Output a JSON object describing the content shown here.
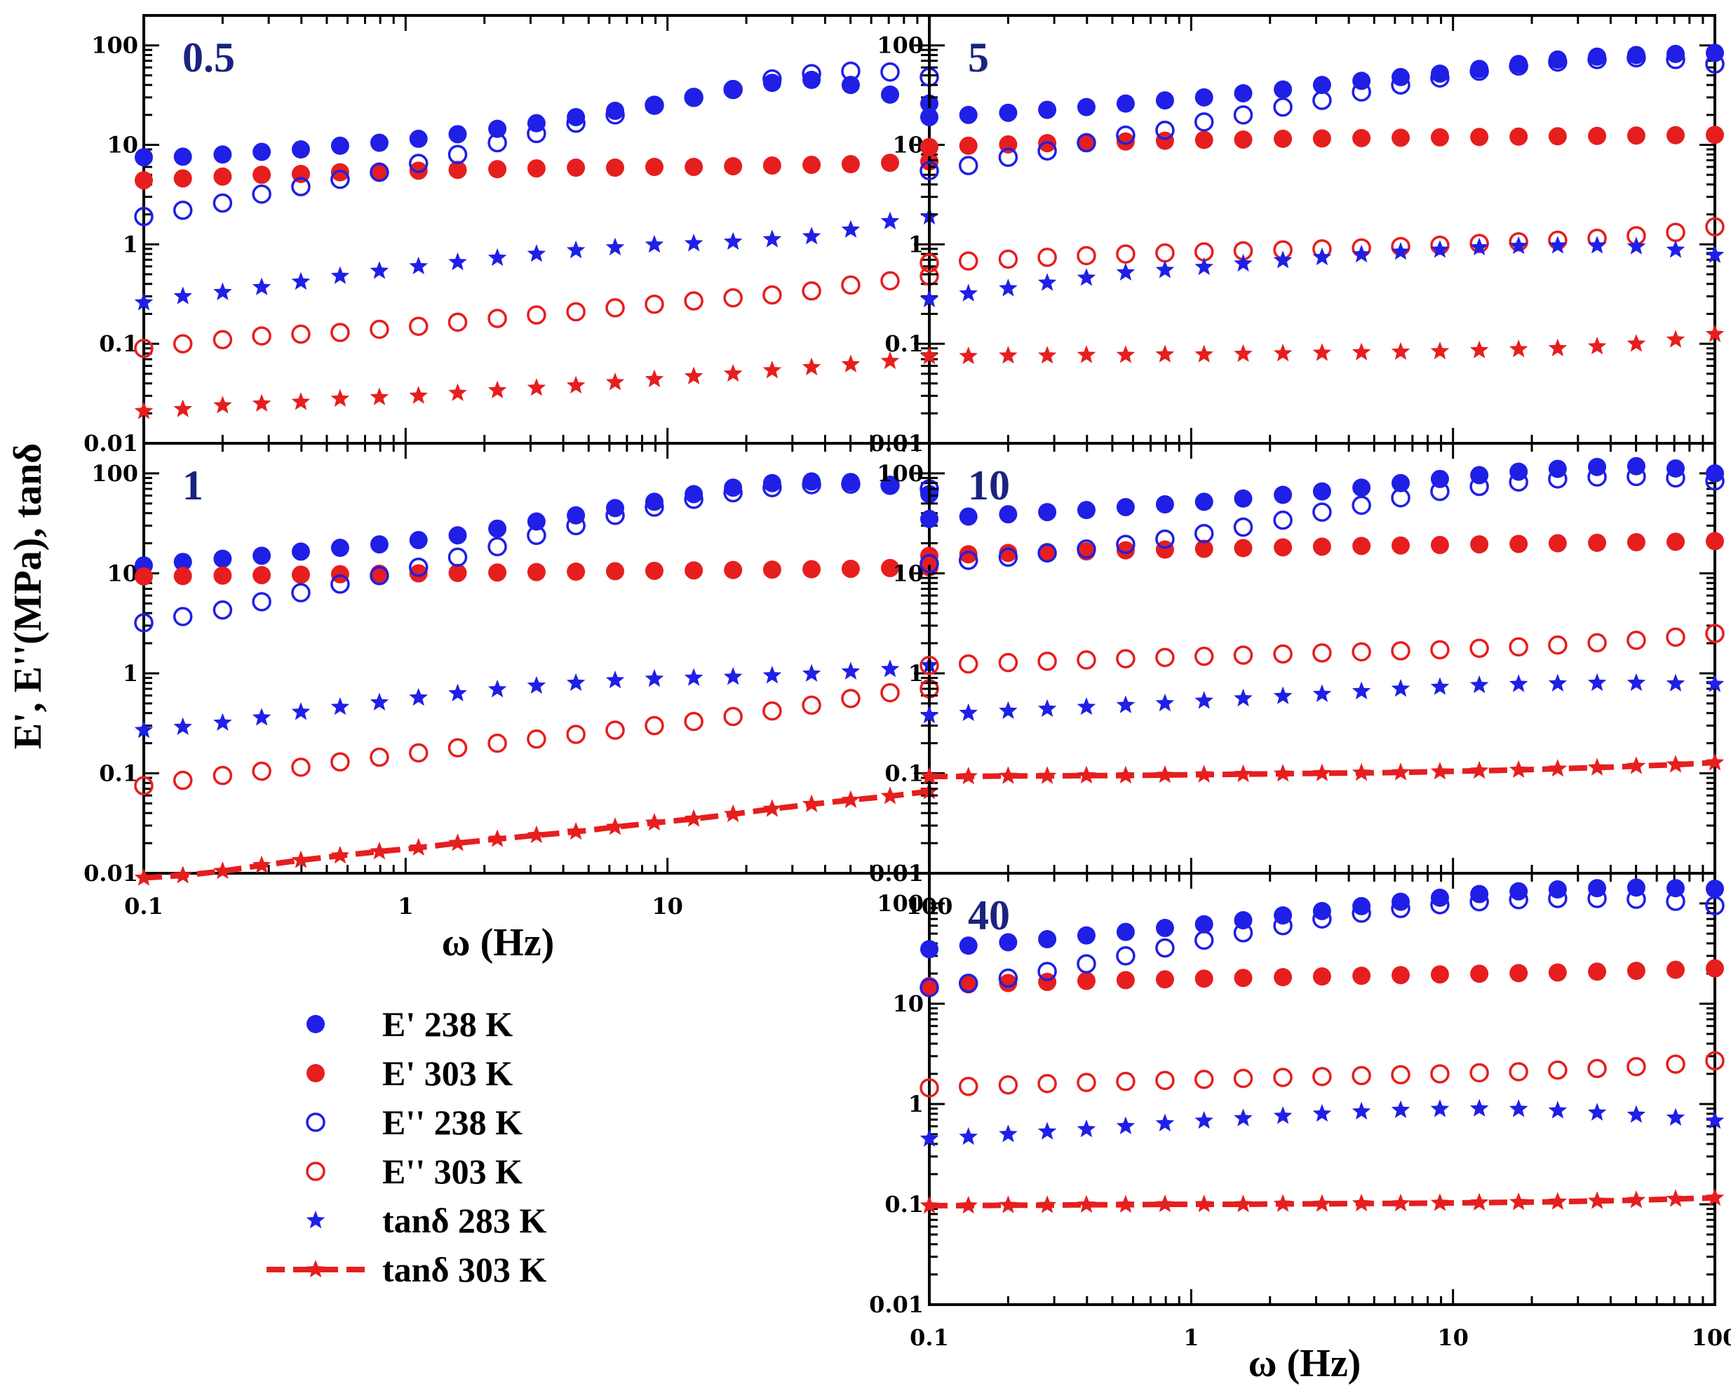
{
  "colors": {
    "blue": "#1f1fe6",
    "red": "#e61e1e",
    "panel_label": "#1a237e",
    "axis": "#000000"
  },
  "ylabel": "E', E''(MPa), tanδ",
  "xlabel": "ω (Hz)",
  "x_ticks": [
    "0.1",
    "1",
    "10",
    "100"
  ],
  "y_ticks": [
    "0.01",
    "0.1",
    "1",
    "10",
    "100"
  ],
  "legend": [
    {
      "label": "E'  238 K",
      "marker": "filled-circle",
      "color": "blue"
    },
    {
      "label": "E'  303 K",
      "marker": "filled-circle",
      "color": "red"
    },
    {
      "label": "E''  238 K",
      "marker": "open-circle",
      "color": "blue"
    },
    {
      "label": "E'' 303 K",
      "marker": "open-circle",
      "color": "red"
    },
    {
      "label": "tanδ 283 K",
      "marker": "star",
      "color": "blue"
    },
    {
      "label": "tanδ 303 K",
      "marker": "star-dashed-line",
      "color": "red"
    }
  ],
  "chart_data": [
    {
      "type": "scatter",
      "title": "0.5",
      "xscale": "log",
      "yscale": "log",
      "xlim": [
        0.1,
        100
      ],
      "ylim": [
        0.01,
        200
      ],
      "x": [
        0.1,
        0.141,
        0.2,
        0.282,
        0.398,
        0.562,
        0.794,
        1.12,
        1.58,
        2.24,
        3.16,
        4.47,
        6.31,
        8.91,
        12.6,
        17.8,
        25.1,
        35.5,
        50.1,
        70.8,
        100
      ],
      "series": [
        {
          "name": "E' 238 K",
          "style": "filled-circle",
          "color": "blue",
          "values": [
            7.5,
            7.6,
            8,
            8.5,
            9,
            9.8,
            10.5,
            11.5,
            12.8,
            14.5,
            16.5,
            19,
            22,
            25,
            30,
            36,
            42,
            45,
            40,
            32,
            26
          ]
        },
        {
          "name": "E' 303 K",
          "style": "filled-circle",
          "color": "red",
          "values": [
            4.4,
            4.6,
            4.8,
            5,
            5.1,
            5.3,
            5.4,
            5.5,
            5.6,
            5.7,
            5.8,
            5.9,
            5.9,
            6,
            6,
            6.1,
            6.2,
            6.3,
            6.4,
            6.6,
            6.8
          ]
        },
        {
          "name": "E'' 238 K",
          "style": "open-circle",
          "color": "blue",
          "values": [
            1.9,
            2.2,
            2.6,
            3.2,
            3.8,
            4.5,
            5.3,
            6.5,
            8,
            10.5,
            13,
            16.5,
            20,
            25,
            30,
            36,
            46,
            52,
            55,
            54,
            48
          ]
        },
        {
          "name": "E'' 303 K",
          "style": "open-circle",
          "color": "red",
          "values": [
            0.09,
            0.1,
            0.11,
            0.12,
            0.125,
            0.13,
            0.14,
            0.15,
            0.165,
            0.18,
            0.195,
            0.21,
            0.23,
            0.25,
            0.27,
            0.29,
            0.31,
            0.34,
            0.39,
            0.43,
            0.48
          ]
        },
        {
          "name": "tanδ 283 K",
          "style": "star",
          "color": "blue",
          "values": [
            0.26,
            0.3,
            0.33,
            0.37,
            0.42,
            0.48,
            0.54,
            0.6,
            0.66,
            0.73,
            0.8,
            0.87,
            0.93,
            0.99,
            1.02,
            1.06,
            1.12,
            1.2,
            1.4,
            1.7,
            1.9
          ]
        },
        {
          "name": "tanδ 303 K",
          "style": "star",
          "color": "red",
          "values": [
            0.021,
            0.022,
            0.024,
            0.025,
            0.026,
            0.028,
            0.029,
            0.03,
            0.032,
            0.034,
            0.036,
            0.038,
            0.041,
            0.044,
            0.047,
            0.05,
            0.054,
            0.058,
            0.062,
            0.067,
            0.075
          ]
        }
      ]
    },
    {
      "type": "scatter",
      "title": "5",
      "xscale": "log",
      "yscale": "log",
      "xlim": [
        0.1,
        100
      ],
      "ylim": [
        0.01,
        200
      ],
      "x": [
        0.1,
        0.141,
        0.2,
        0.282,
        0.398,
        0.562,
        0.794,
        1.12,
        1.58,
        2.24,
        3.16,
        4.47,
        6.31,
        8.91,
        12.6,
        17.8,
        25.1,
        35.5,
        50.1,
        70.8,
        100
      ],
      "series": [
        {
          "name": "E' 238 K",
          "style": "filled-circle",
          "color": "blue",
          "values": [
            19,
            20,
            21,
            22.5,
            24,
            26,
            28,
            30,
            33,
            36,
            40,
            44,
            48,
            52,
            58,
            65,
            72,
            77,
            80,
            82,
            84
          ]
        },
        {
          "name": "E' 303 K",
          "style": "filled-circle",
          "color": "red",
          "values": [
            9.5,
            9.8,
            10.1,
            10.4,
            10.6,
            10.8,
            11,
            11.2,
            11.3,
            11.5,
            11.6,
            11.7,
            11.8,
            11.9,
            12,
            12.1,
            12.2,
            12.3,
            12.4,
            12.5,
            12.6
          ]
        },
        {
          "name": "E'' 238 K",
          "style": "open-circle",
          "color": "blue",
          "values": [
            5.5,
            6.2,
            7.5,
            8.7,
            10.5,
            12.5,
            14,
            17,
            20,
            24,
            28,
            34,
            40,
            47,
            55,
            62,
            68,
            72,
            75,
            72,
            65
          ]
        },
        {
          "name": "E'' 303 K",
          "style": "open-circle",
          "color": "red",
          "values": [
            0.65,
            0.68,
            0.71,
            0.74,
            0.77,
            0.8,
            0.82,
            0.84,
            0.86,
            0.88,
            0.9,
            0.92,
            0.95,
            0.98,
            1.02,
            1.06,
            1.1,
            1.15,
            1.22,
            1.32,
            1.5
          ]
        },
        {
          "name": "tanδ 283 K",
          "style": "star",
          "color": "blue",
          "values": [
            0.28,
            0.32,
            0.36,
            0.41,
            0.46,
            0.52,
            0.55,
            0.59,
            0.64,
            0.69,
            0.74,
            0.79,
            0.84,
            0.88,
            0.93,
            0.96,
            0.97,
            0.97,
            0.95,
            0.88,
            0.78
          ]
        },
        {
          "name": "tanδ 303 K",
          "style": "star",
          "color": "red",
          "values": [
            0.075,
            0.075,
            0.076,
            0.076,
            0.077,
            0.077,
            0.078,
            0.078,
            0.079,
            0.08,
            0.081,
            0.082,
            0.083,
            0.084,
            0.086,
            0.088,
            0.09,
            0.094,
            0.1,
            0.11,
            0.125
          ]
        }
      ]
    },
    {
      "type": "scatter",
      "title": "1",
      "xscale": "log",
      "yscale": "log",
      "xlim": [
        0.1,
        100
      ],
      "ylim": [
        0.01,
        200
      ],
      "x": [
        0.1,
        0.141,
        0.2,
        0.282,
        0.398,
        0.562,
        0.794,
        1.12,
        1.58,
        2.24,
        3.16,
        4.47,
        6.31,
        8.91,
        12.6,
        17.8,
        25.1,
        35.5,
        50.1,
        70.8,
        100
      ],
      "series": [
        {
          "name": "E' 238 K",
          "style": "filled-circle",
          "color": "blue",
          "values": [
            12,
            13,
            14,
            15,
            16.5,
            18,
            19.5,
            21.5,
            24,
            28,
            33,
            38,
            45,
            52,
            62,
            72,
            80,
            83,
            82,
            76,
            62
          ]
        },
        {
          "name": "E' 303 K",
          "style": "filled-circle",
          "color": "red",
          "values": [
            9.3,
            9.4,
            9.5,
            9.6,
            9.7,
            9.8,
            9.9,
            10,
            10.1,
            10.2,
            10.3,
            10.4,
            10.5,
            10.6,
            10.7,
            10.8,
            10.9,
            11,
            11.1,
            11.3,
            11.5
          ]
        },
        {
          "name": "E'' 238 K",
          "style": "open-circle",
          "color": "blue",
          "values": [
            3.2,
            3.7,
            4.3,
            5.2,
            6.4,
            7.8,
            9.5,
            11.5,
            14.5,
            18.5,
            24,
            30,
            38,
            46,
            55,
            64,
            72,
            77,
            78,
            76,
            70
          ]
        },
        {
          "name": "E'' 303 K",
          "style": "open-circle",
          "color": "red",
          "values": [
            0.075,
            0.085,
            0.095,
            0.105,
            0.115,
            0.13,
            0.145,
            0.16,
            0.18,
            0.2,
            0.22,
            0.245,
            0.27,
            0.3,
            0.33,
            0.37,
            0.42,
            0.48,
            0.56,
            0.64,
            0.7
          ]
        },
        {
          "name": "tanδ 283 K",
          "style": "star",
          "color": "blue",
          "values": [
            0.27,
            0.29,
            0.32,
            0.36,
            0.41,
            0.46,
            0.51,
            0.57,
            0.63,
            0.69,
            0.75,
            0.8,
            0.85,
            0.88,
            0.9,
            0.92,
            0.95,
            0.99,
            1.04,
            1.1,
            1.2
          ]
        },
        {
          "name": "tanδ 303 K",
          "style": "star-dashed-line",
          "color": "red",
          "values": [
            0.009,
            0.0095,
            0.0105,
            0.012,
            0.0135,
            0.015,
            0.0165,
            0.018,
            0.02,
            0.022,
            0.024,
            0.026,
            0.029,
            0.032,
            0.035,
            0.039,
            0.044,
            0.049,
            0.054,
            0.059,
            0.066
          ]
        }
      ]
    },
    {
      "type": "scatter",
      "title": "10",
      "xscale": "log",
      "yscale": "log",
      "xlim": [
        0.1,
        100
      ],
      "ylim": [
        0.01,
        200
      ],
      "x": [
        0.1,
        0.141,
        0.2,
        0.282,
        0.398,
        0.562,
        0.794,
        1.12,
        1.58,
        2.24,
        3.16,
        4.47,
        6.31,
        8.91,
        12.6,
        17.8,
        25.1,
        35.5,
        50.1,
        70.8,
        100
      ],
      "series": [
        {
          "name": "E' 238 K",
          "style": "filled-circle",
          "color": "blue",
          "values": [
            35,
            37,
            39,
            41,
            43,
            46,
            49,
            52,
            56,
            61,
            66,
            72,
            80,
            88,
            96,
            104,
            111,
            116,
            118,
            112,
            100
          ]
        },
        {
          "name": "E' 303 K",
          "style": "filled-circle",
          "color": "red",
          "values": [
            15,
            15.5,
            16,
            16.3,
            16.6,
            17,
            17.3,
            17.6,
            17.9,
            18.2,
            18.5,
            18.8,
            19,
            19.2,
            19.5,
            19.7,
            20,
            20.2,
            20.5,
            20.7,
            21
          ]
        },
        {
          "name": "E'' 238 K",
          "style": "open-circle",
          "color": "blue",
          "values": [
            12.5,
            13.5,
            14.5,
            16,
            17.5,
            19.5,
            22,
            25,
            29,
            34,
            41,
            48,
            57,
            66,
            74,
            82,
            88,
            92,
            93,
            90,
            84
          ]
        },
        {
          "name": "E'' 303 K",
          "style": "open-circle",
          "color": "red",
          "values": [
            1.2,
            1.24,
            1.28,
            1.32,
            1.36,
            1.4,
            1.44,
            1.48,
            1.52,
            1.56,
            1.6,
            1.64,
            1.68,
            1.72,
            1.78,
            1.84,
            1.92,
            2.02,
            2.14,
            2.3,
            2.5
          ]
        },
        {
          "name": "tanδ 283 K",
          "style": "star",
          "color": "blue",
          "values": [
            0.38,
            0.4,
            0.42,
            0.44,
            0.46,
            0.48,
            0.5,
            0.53,
            0.56,
            0.59,
            0.62,
            0.66,
            0.7,
            0.73,
            0.76,
            0.78,
            0.79,
            0.8,
            0.8,
            0.79,
            0.78
          ]
        },
        {
          "name": "tanδ 303 K",
          "style": "star-dashed-line",
          "color": "red",
          "values": [
            0.093,
            0.093,
            0.094,
            0.094,
            0.095,
            0.095,
            0.096,
            0.097,
            0.098,
            0.099,
            0.1,
            0.101,
            0.102,
            0.104,
            0.106,
            0.108,
            0.111,
            0.114,
            0.118,
            0.122,
            0.128
          ]
        }
      ]
    },
    {
      "type": "scatter",
      "title": "40",
      "xscale": "log",
      "yscale": "log",
      "xlim": [
        0.1,
        100
      ],
      "ylim": [
        0.01,
        200
      ],
      "x": [
        0.1,
        0.141,
        0.2,
        0.282,
        0.398,
        0.562,
        0.794,
        1.12,
        1.58,
        2.24,
        3.16,
        4.47,
        6.31,
        8.91,
        12.6,
        17.8,
        25.1,
        35.5,
        50.1,
        70.8,
        100
      ],
      "series": [
        {
          "name": "E' 238 K",
          "style": "filled-circle",
          "color": "blue",
          "values": [
            35,
            38,
            41,
            44,
            48,
            52,
            57,
            62,
            68,
            76,
            84,
            94,
            104,
            114,
            124,
            132,
            138,
            142,
            144,
            142,
            140
          ]
        },
        {
          "name": "E' 303 K",
          "style": "filled-circle",
          "color": "red",
          "values": [
            15,
            15.6,
            16.1,
            16.5,
            16.9,
            17.2,
            17.5,
            17.8,
            18.1,
            18.4,
            18.7,
            19,
            19.3,
            19.6,
            19.9,
            20.2,
            20.5,
            20.9,
            21.3,
            21.8,
            22.5
          ]
        },
        {
          "name": "E'' 238 K",
          "style": "open-circle",
          "color": "blue",
          "values": [
            14.5,
            16,
            18,
            21,
            25,
            30,
            36,
            43,
            51,
            60,
            70,
            80,
            89,
            97,
            104,
            109,
            112,
            112,
            110,
            105,
            95
          ]
        },
        {
          "name": "E'' 303 K",
          "style": "open-circle",
          "color": "red",
          "values": [
            1.45,
            1.5,
            1.55,
            1.6,
            1.64,
            1.68,
            1.72,
            1.76,
            1.8,
            1.84,
            1.88,
            1.92,
            1.96,
            2,
            2.05,
            2.1,
            2.18,
            2.26,
            2.36,
            2.5,
            2.7
          ]
        },
        {
          "name": "tanδ 283 K",
          "style": "star",
          "color": "blue",
          "values": [
            0.45,
            0.47,
            0.5,
            0.53,
            0.56,
            0.6,
            0.64,
            0.68,
            0.72,
            0.76,
            0.8,
            0.84,
            0.87,
            0.89,
            0.9,
            0.89,
            0.86,
            0.82,
            0.78,
            0.73,
            0.68
          ]
        },
        {
          "name": "tanδ 303 K",
          "style": "star-dashed-line",
          "color": "red",
          "values": [
            0.097,
            0.097,
            0.098,
            0.098,
            0.099,
            0.099,
            0.1,
            0.1,
            0.1,
            0.101,
            0.101,
            0.102,
            0.102,
            0.103,
            0.104,
            0.105,
            0.106,
            0.108,
            0.11,
            0.113,
            0.116
          ]
        }
      ]
    }
  ]
}
